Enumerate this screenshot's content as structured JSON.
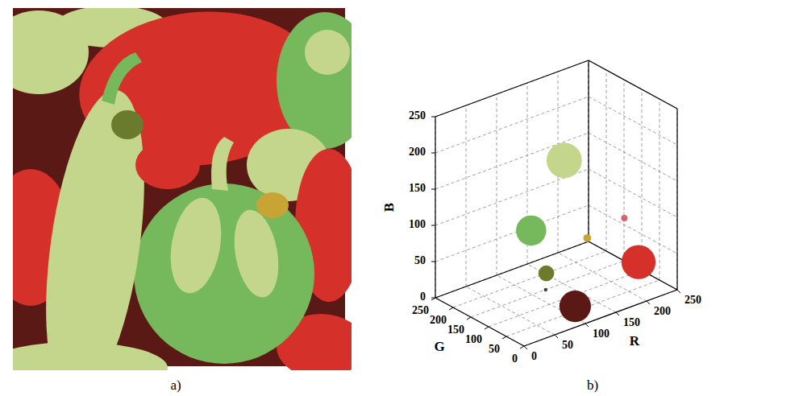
{
  "image_panel": {
    "label": "a)"
  },
  "chart_data": {
    "type": "scatter3d",
    "label": "b)",
    "x_label": "R",
    "y_label": "G",
    "z_label": "B",
    "xlim": [
      0,
      250
    ],
    "ylim": [
      0,
      250
    ],
    "zlim": [
      0,
      250
    ],
    "xticks": [
      0,
      50,
      100,
      150,
      200,
      250
    ],
    "yticks": [
      0,
      50,
      100,
      150,
      200,
      250
    ],
    "zticks": [
      0,
      50,
      100,
      150,
      200,
      250
    ],
    "grid": true,
    "x": [
      190,
      110,
      100,
      190,
      70,
      210,
      210,
      95
    ],
    "y": [
      215,
      170,
      110,
      150,
      60,
      80,
      40,
      20
    ],
    "z": [
      140,
      80,
      40,
      50,
      40,
      90,
      40,
      20
    ],
    "size": [
      30,
      22,
      6,
      1.5,
      0.3,
      1,
      28,
      24
    ],
    "colors": [
      "#c4d68b",
      "#76b85c",
      "#6b7b2e",
      "#c8a435",
      "#4d3d2a",
      "#d8636f",
      "#d6302b",
      "#5a1914"
    ]
  }
}
